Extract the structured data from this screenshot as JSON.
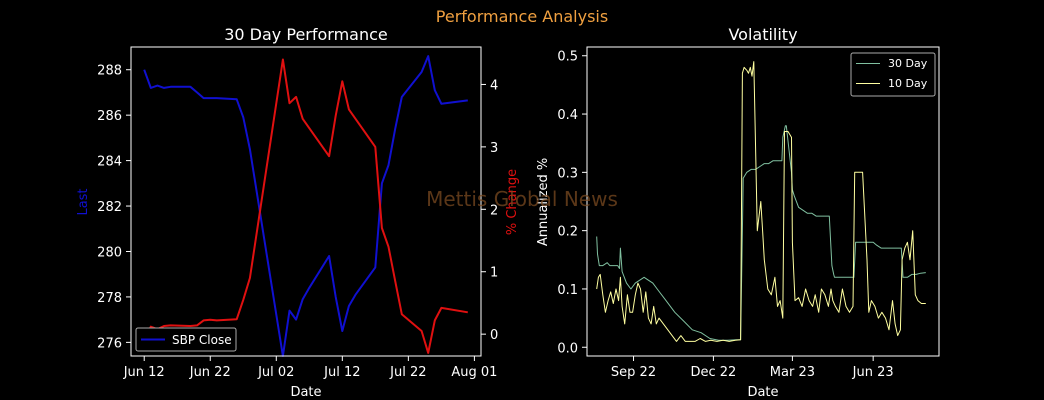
{
  "figure_title": "Performance Analysis",
  "watermark": "Mettis Global News",
  "colors": {
    "background": "#000000",
    "title": "#f0a040",
    "axis": "#ffffff",
    "close_line": "#1010d0",
    "pct_line": "#e01010",
    "vol30": "#80c0a0",
    "vol10": "#ffffa0",
    "watermark": "#7a4a20"
  },
  "chart_data": [
    {
      "type": "line",
      "title": "30 Day Performance",
      "xlabel": "Date",
      "ylabel": "Last",
      "ylabel_right": "% Change",
      "xlim": [
        "2023-06-10",
        "2023-08-02"
      ],
      "ylim": [
        275.4,
        289.0
      ],
      "ylim_right": [
        -0.35,
        4.6
      ],
      "x_ticks": [
        {
          "date": "2023-06-12",
          "label": "Jun 12"
        },
        {
          "date": "2023-06-22",
          "label": "Jun 22"
        },
        {
          "date": "2023-07-02",
          "label": "Jul 02"
        },
        {
          "date": "2023-07-12",
          "label": "Jul 12"
        },
        {
          "date": "2023-07-22",
          "label": "Jul 22"
        },
        {
          "date": "2023-08-01",
          "label": "Aug 01"
        }
      ],
      "y_ticks": [
        "276",
        "278",
        "280",
        "282",
        "284",
        "286",
        "288"
      ],
      "y_ticks_right": [
        "0",
        "1",
        "2",
        "3",
        "4"
      ],
      "legend": {
        "position": "lower-left",
        "entries": [
          "SBP Close"
        ]
      },
      "series": [
        {
          "name": "SBP Close",
          "axis": "left",
          "x": [
            "2023-06-12",
            "2023-06-13",
            "2023-06-14",
            "2023-06-15",
            "2023-06-16",
            "2023-06-19",
            "2023-06-20",
            "2023-06-21",
            "2023-06-22",
            "2023-06-23",
            "2023-06-26",
            "2023-06-27",
            "2023-06-28",
            "2023-07-03",
            "2023-07-04",
            "2023-07-05",
            "2023-07-06",
            "2023-07-07",
            "2023-07-10",
            "2023-07-11",
            "2023-07-12",
            "2023-07-13",
            "2023-07-14",
            "2023-07-17",
            "2023-07-18",
            "2023-07-19",
            "2023-07-20",
            "2023-07-21",
            "2023-07-24",
            "2023-07-25",
            "2023-07-26",
            "2023-07-27",
            "2023-07-31"
          ],
          "values": [
            288.0,
            287.2,
            287.3,
            287.2,
            287.25,
            287.25,
            287.0,
            286.75,
            286.75,
            286.75,
            286.7,
            285.9,
            284.5,
            275.4,
            277.4,
            277.0,
            277.9,
            278.4,
            279.8,
            278.0,
            276.5,
            277.6,
            278.1,
            279.3,
            283.0,
            283.8,
            285.4,
            286.8,
            287.9,
            288.6,
            287.1,
            286.5,
            286.65
          ]
        },
        {
          "name": "% Change",
          "axis": "right",
          "x": [
            "2023-06-12",
            "2023-06-13",
            "2023-06-14",
            "2023-06-15",
            "2023-06-16",
            "2023-06-19",
            "2023-06-20",
            "2023-06-21",
            "2023-06-22",
            "2023-06-23",
            "2023-06-26",
            "2023-06-27",
            "2023-06-28",
            "2023-07-03",
            "2023-07-04",
            "2023-07-05",
            "2023-07-06",
            "2023-07-07",
            "2023-07-10",
            "2023-07-11",
            "2023-07-12",
            "2023-07-13",
            "2023-07-14",
            "2023-07-17",
            "2023-07-18",
            "2023-07-19",
            "2023-07-20",
            "2023-07-21",
            "2023-07-24",
            "2023-07-25",
            "2023-07-26",
            "2023-07-27",
            "2023-07-31"
          ],
          "values": [
            -0.1,
            0.12,
            0.08,
            0.13,
            0.14,
            0.13,
            0.14,
            0.22,
            0.23,
            0.22,
            0.24,
            0.55,
            0.9,
            4.4,
            3.7,
            3.8,
            3.45,
            3.3,
            2.85,
            3.5,
            4.05,
            3.6,
            3.45,
            3.0,
            1.7,
            1.4,
            0.85,
            0.32,
            0.05,
            -0.3,
            0.22,
            0.42,
            0.35
          ]
        }
      ]
    },
    {
      "type": "line",
      "title": "Volatility",
      "xlabel": "Date",
      "ylabel": "Annualized %",
      "xlim": [
        "2022-07-10",
        "2023-08-15"
      ],
      "ylim": [
        -0.015,
        0.515
      ],
      "x_ticks": [
        {
          "date": "2022-09-01",
          "label": "Sep 22"
        },
        {
          "date": "2022-12-01",
          "label": "Dec 22"
        },
        {
          "date": "2023-03-01",
          "label": "Mar 23"
        },
        {
          "date": "2023-06-01",
          "label": "Jun 23"
        }
      ],
      "y_ticks": [
        "0.0",
        "0.1",
        "0.2",
        "0.3",
        "0.4",
        "0.5"
      ],
      "legend": {
        "position": "top-right",
        "entries": [
          "30 Day",
          "10 Day"
        ]
      },
      "series": [
        {
          "name": "30 Day",
          "x": [
            "2022-07-21",
            "2022-07-22",
            "2022-07-24",
            "2022-07-28",
            "2022-08-02",
            "2022-08-05",
            "2022-08-09",
            "2022-08-14",
            "2022-08-16",
            "2022-08-17",
            "2022-08-19",
            "2022-08-24",
            "2022-08-29",
            "2022-09-03",
            "2022-09-08",
            "2022-09-13",
            "2022-09-18",
            "2022-09-23",
            "2022-09-28",
            "2022-10-08",
            "2022-10-18",
            "2022-10-28",
            "2022-11-07",
            "2022-11-17",
            "2022-11-27",
            "2022-12-07",
            "2022-12-17",
            "2022-12-27",
            "2023-01-01",
            "2023-01-03",
            "2023-01-04",
            "2023-01-08",
            "2023-01-13",
            "2023-01-18",
            "2023-01-23",
            "2023-01-28",
            "2023-02-02",
            "2023-02-07",
            "2023-02-12",
            "2023-02-17",
            "2023-02-18",
            "2023-02-21",
            "2023-02-22",
            "2023-02-28",
            "2023-03-01",
            "2023-03-03",
            "2023-03-08",
            "2023-03-13",
            "2023-03-18",
            "2023-03-23",
            "2023-03-28",
            "2023-04-02",
            "2023-04-07",
            "2023-04-12",
            "2023-04-15",
            "2023-04-17",
            "2023-04-18",
            "2023-04-22",
            "2023-04-27",
            "2023-05-02",
            "2023-05-07",
            "2023-05-10",
            "2023-05-12",
            "2023-05-15",
            "2023-05-20",
            "2023-05-25",
            "2023-06-01",
            "2023-06-05",
            "2023-06-10",
            "2023-06-15",
            "2023-06-20",
            "2023-06-25",
            "2023-06-30",
            "2023-07-03",
            "2023-07-05",
            "2023-07-10",
            "2023-07-15",
            "2023-07-20",
            "2023-07-25",
            "2023-07-31"
          ],
          "values": [
            0.19,
            0.16,
            0.14,
            0.14,
            0.145,
            0.14,
            0.14,
            0.14,
            0.135,
            0.17,
            0.13,
            0.11,
            0.1,
            0.11,
            0.115,
            0.12,
            0.115,
            0.11,
            0.1,
            0.08,
            0.06,
            0.045,
            0.03,
            0.025,
            0.015,
            0.012,
            0.012,
            0.013,
            0.013,
            0.2,
            0.29,
            0.3,
            0.305,
            0.305,
            0.31,
            0.315,
            0.315,
            0.32,
            0.32,
            0.32,
            0.36,
            0.38,
            0.38,
            0.3,
            0.27,
            0.26,
            0.24,
            0.235,
            0.23,
            0.23,
            0.225,
            0.225,
            0.225,
            0.225,
            0.14,
            0.125,
            0.12,
            0.12,
            0.12,
            0.12,
            0.12,
            0.12,
            0.18,
            0.18,
            0.18,
            0.18,
            0.18,
            0.175,
            0.17,
            0.17,
            0.17,
            0.17,
            0.17,
            0.17,
            0.12,
            0.12,
            0.125,
            0.125,
            0.127,
            0.128
          ]
        },
        {
          "name": "10 Day",
          "x": [
            "2022-07-21",
            "2022-07-23",
            "2022-07-25",
            "2022-07-28",
            "2022-07-31",
            "2022-08-03",
            "2022-08-06",
            "2022-08-09",
            "2022-08-12",
            "2022-08-15",
            "2022-08-17",
            "2022-08-19",
            "2022-08-22",
            "2022-08-25",
            "2022-08-28",
            "2022-08-31",
            "2022-09-03",
            "2022-09-06",
            "2022-09-09",
            "2022-09-12",
            "2022-09-15",
            "2022-09-18",
            "2022-09-21",
            "2022-09-24",
            "2022-09-27",
            "2022-09-30",
            "2022-10-05",
            "2022-10-10",
            "2022-10-15",
            "2022-10-20",
            "2022-10-25",
            "2022-10-30",
            "2022-11-04",
            "2022-11-10",
            "2022-11-16",
            "2022-11-22",
            "2022-11-28",
            "2022-12-05",
            "2022-12-12",
            "2022-12-19",
            "2022-12-26",
            "2023-01-01",
            "2023-01-03",
            "2023-01-05",
            "2023-01-08",
            "2023-01-10",
            "2023-01-12",
            "2023-01-14",
            "2023-01-16",
            "2023-01-20",
            "2023-01-24",
            "2023-01-26",
            "2023-01-28",
            "2023-02-01",
            "2023-02-05",
            "2023-02-09",
            "2023-02-12",
            "2023-02-15",
            "2023-02-18",
            "2023-02-20",
            "2023-02-24",
            "2023-02-26",
            "2023-02-28",
            "2023-03-01",
            "2023-03-04",
            "2023-03-08",
            "2023-03-12",
            "2023-03-16",
            "2023-03-20",
            "2023-03-24",
            "2023-03-27",
            "2023-03-31",
            "2023-04-03",
            "2023-04-07",
            "2023-04-11",
            "2023-04-14",
            "2023-04-16",
            "2023-04-19",
            "2023-04-23",
            "2023-04-27",
            "2023-05-01",
            "2023-05-05",
            "2023-05-09",
            "2023-05-11",
            "2023-05-13",
            "2023-05-20",
            "2023-05-25",
            "2023-05-27",
            "2023-05-30",
            "2023-06-03",
            "2023-06-07",
            "2023-06-11",
            "2023-06-15",
            "2023-06-19",
            "2023-06-23",
            "2023-06-26",
            "2023-06-29",
            "2023-07-02",
            "2023-07-04",
            "2023-07-07",
            "2023-07-10",
            "2023-07-13",
            "2023-07-16",
            "2023-07-19",
            "2023-07-22",
            "2023-07-26",
            "2023-07-31"
          ],
          "values": [
            0.1,
            0.12,
            0.125,
            0.09,
            0.06,
            0.08,
            0.095,
            0.075,
            0.1,
            0.08,
            0.12,
            0.07,
            0.04,
            0.09,
            0.06,
            0.06,
            0.09,
            0.11,
            0.1,
            0.06,
            0.095,
            0.05,
            0.04,
            0.07,
            0.04,
            0.05,
            0.04,
            0.03,
            0.02,
            0.01,
            0.02,
            0.01,
            0.01,
            0.01,
            0.015,
            0.01,
            0.012,
            0.01,
            0.012,
            0.01,
            0.012,
            0.013,
            0.47,
            0.48,
            0.475,
            0.47,
            0.48,
            0.465,
            0.49,
            0.2,
            0.25,
            0.2,
            0.15,
            0.1,
            0.09,
            0.12,
            0.07,
            0.08,
            0.05,
            0.37,
            0.37,
            0.365,
            0.36,
            0.18,
            0.08,
            0.085,
            0.07,
            0.1,
            0.08,
            0.07,
            0.09,
            0.06,
            0.1,
            0.09,
            0.07,
            0.1,
            0.08,
            0.07,
            0.06,
            0.1,
            0.07,
            0.06,
            0.07,
            0.3,
            0.3,
            0.3,
            0.15,
            0.06,
            0.08,
            0.07,
            0.05,
            0.06,
            0.05,
            0.03,
            0.08,
            0.04,
            0.02,
            0.03,
            0.15,
            0.17,
            0.18,
            0.15,
            0.2,
            0.09,
            0.08,
            0.075,
            0.075
          ]
        }
      ]
    }
  ]
}
